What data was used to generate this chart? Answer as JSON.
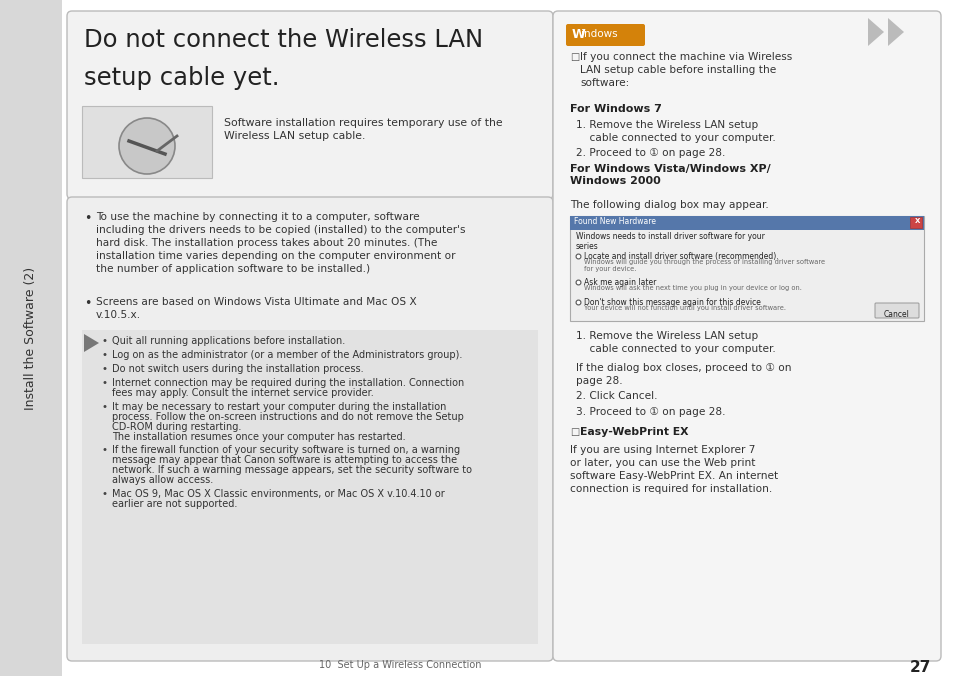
{
  "page_bg": "#ffffff",
  "left_sidebar_bg": "#d8d8d8",
  "left_sidebar_text": "Install the Software (2)",
  "main_title_line1": "Do not connect the Wireless LAN",
  "main_title_line2": "setup cable yet.",
  "title_box_bg": "#f2f2f2",
  "title_box_border": "#bbbbbb",
  "cable_text": "Software installation requires temporary use of the\nWireless LAN setup cable.",
  "body_box_bg": "#eeeeee",
  "body_box_border": "#bbbbbb",
  "bullet1": "To use the machine by connecting it to a computer, software\nincluding the drivers needs to be copied (installed) to the computer's\nhard disk. The installation process takes about 20 minutes. (The\ninstallation time varies depending on the computer environment or\nthe number of application software to be installed.)",
  "bullet2": "Screens are based on Windows Vista Ultimate and Mac OS X\nv.10.5.x.",
  "gray_box_bullets": [
    "Quit all running applications before installation.",
    "Log on as the administrator (or a member of the Administrators group).",
    "Do not switch users during the installation process.",
    "Internet connection may be required during the installation. Connection\nfees may apply. Consult the internet service provider.",
    "It may be necessary to restart your computer during the installation\nprocess. Follow the on-screen instructions and do not remove the Setup\nCD-ROM during restarting.\nThe installation resumes once your computer has restarted.",
    "If the firewall function of your security software is turned on, a warning\nmessage may appear that Canon software is attempting to access the\nnetwork. If such a warning message appears, set the security software to\nalways allow access.",
    "Mac OS 9, Mac OS X Classic environments, or Mac OS X v.10.4.10 or\nearlier are not supported."
  ],
  "right_panel_bg": "#f5f5f5",
  "right_panel_border": "#bbbbbb",
  "windows_tag_bg": "#d4820a",
  "right_intro": "If you connect the machine via Wireless\nLAN setup cable before installing the\nsoftware:",
  "win7_header": "For Windows 7",
  "win7_step1": "1. Remove the Wireless LAN setup\n    cable connected to your computer.",
  "win7_step2": "2. Proceed to ① on page 28.",
  "winvista_header": "For Windows Vista/Windows XP/\nWindows 2000",
  "following_text": "The following dialog box may appear.",
  "after_step1": "1. Remove the Wireless LAN setup\n    cable connected to your computer.",
  "after_step1b": "If the dialog box closes, proceed to ① on\npage 28.",
  "after_step2": "2. Click Cancel.",
  "after_step3": "3. Proceed to ① on page 28.",
  "easy_web_header": "Easy-WebPrint EX",
  "easy_web_text": "If you are using Internet Explorer 7\nor later, you can use the Web print\nsoftware Easy-WebPrint EX. An internet\nconnection is required for installation.",
  "footer_left": "10  Set Up a Wireless Connection",
  "page_number": "27",
  "double_arrow_color": "#bbbbbb"
}
